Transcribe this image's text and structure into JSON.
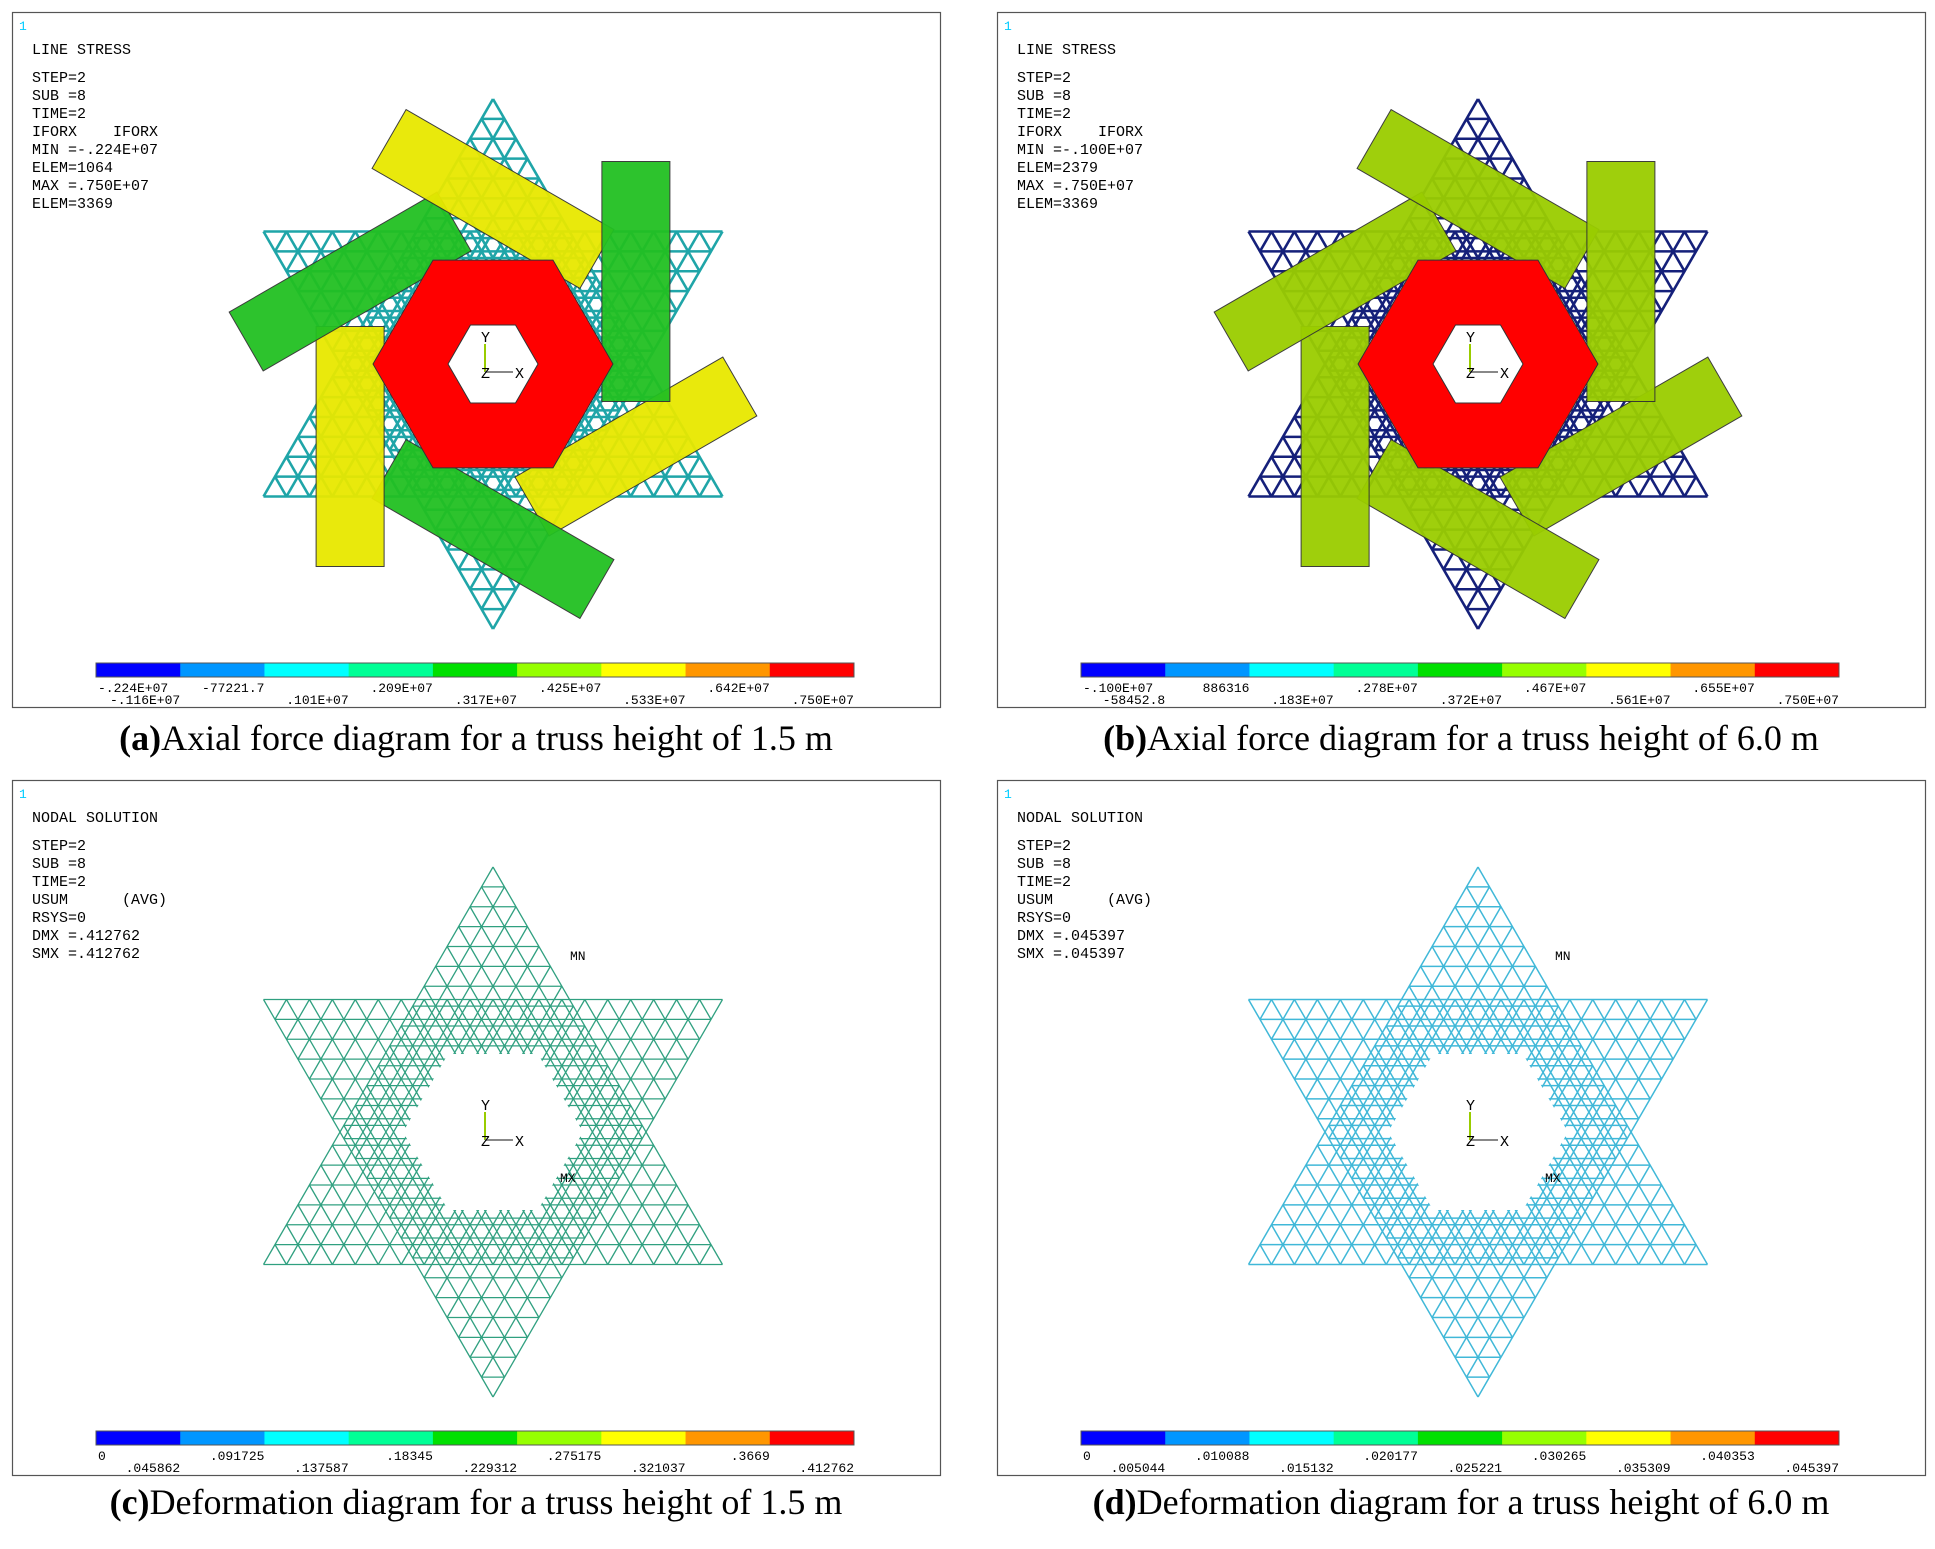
{
  "colorbar_colors": [
    "#0000ff",
    "#0096ff",
    "#00ffff",
    "#00ff96",
    "#00e000",
    "#96ff00",
    "#ffff00",
    "#ff9600",
    "#ff0000"
  ],
  "panels": [
    {
      "window_number": "1",
      "header": [
        "LINE STRESS",
        "STEP=2",
        "SUB =8",
        "TIME=2",
        "IFORX    IFORX",
        "MIN =-.224E+07",
        "ELEM=1064",
        "MAX =.750E+07",
        "ELEM=3369"
      ],
      "triad": {
        "y": "Y",
        "z": "Z",
        "x": "X"
      },
      "colorbar_labels": [
        "-.224E+07",
        "-.116E+07",
        "-77221.7",
        ".101E+07",
        ".209E+07",
        ".317E+07",
        ".425E+07",
        ".533E+07",
        ".642E+07",
        ".750E+07"
      ],
      "caption_label": "(a)",
      "caption": "Axial force diagram for a truss height of 1.5 m"
    },
    {
      "window_number": "1",
      "header": [
        "LINE STRESS",
        "STEP=2",
        "SUB =8",
        "TIME=2",
        "IFORX    IFORX",
        "MIN =-.100E+07",
        "ELEM=2379",
        "MAX =.750E+07",
        "ELEM=3369"
      ],
      "triad": {
        "y": "Y",
        "z": "Z",
        "x": "X"
      },
      "colorbar_labels": [
        "-.100E+07",
        "-58452.8",
        "886316",
        ".183E+07",
        ".278E+07",
        ".372E+07",
        ".467E+07",
        ".561E+07",
        ".655E+07",
        ".750E+07"
      ],
      "caption_label": "(b)",
      "caption": "Axial force diagram for a truss height of 6.0 m"
    },
    {
      "window_number": "1",
      "header": [
        "NODAL SOLUTION",
        "STEP=2",
        "SUB =8",
        "TIME=2",
        "USUM      (AVG)",
        "RSYS=0",
        "DMX =.412762",
        "SMX =.412762"
      ],
      "triad": {
        "y": "Y",
        "z": "Z",
        "x": "X"
      },
      "extremes": [
        "MN",
        "MX"
      ],
      "colorbar_labels": [
        "0",
        ".045862",
        ".091725",
        ".137587",
        ".18345",
        ".229312",
        ".275175",
        ".321037",
        ".3669",
        ".412762"
      ],
      "caption_label": "(c)",
      "caption": "Deformation diagram for a truss height of 1.5 m"
    },
    {
      "window_number": "1",
      "header": [
        "NODAL SOLUTION",
        "STEP=2",
        "SUB =8",
        "TIME=2",
        "USUM      (AVG)",
        "RSYS=0",
        "DMX =.045397",
        "SMX =.045397"
      ],
      "triad": {
        "y": "Y",
        "z": "Z",
        "x": "X"
      },
      "extremes": [
        "MN",
        "MX"
      ],
      "colorbar_labels": [
        "0",
        ".005044",
        ".010088",
        ".015132",
        ".020177",
        ".025221",
        ".030265",
        ".035309",
        ".040353",
        ".045397"
      ],
      "caption_label": "(d)",
      "caption": "Deformation diagram for a truss height of 6.0 m"
    }
  ]
}
